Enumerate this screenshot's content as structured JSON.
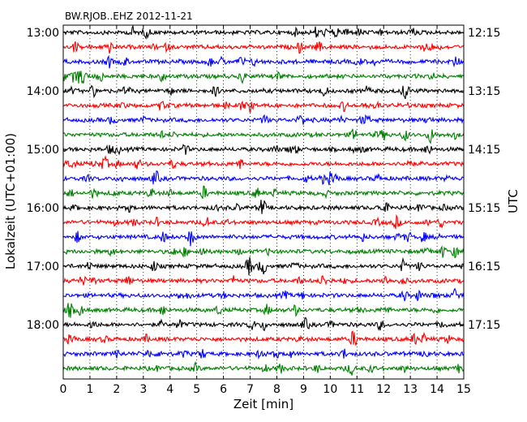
{
  "chart_data": {
    "type": "line",
    "title": "BW.RJOB..EHZ 2012-11-21",
    "xlabel": "Zeit  [min]",
    "ylabel_left": "Lokalzeit (UTC+01:00)",
    "ylabel_right": "UTC",
    "xlim": [
      0,
      15
    ],
    "x_ticks": [
      "0",
      "1",
      "2",
      "3",
      "4",
      "5",
      "6",
      "7",
      "8",
      "9",
      "10",
      "11",
      "12",
      "13",
      "14",
      "15"
    ],
    "grid": "vertical dotted at each minute",
    "left_tick_labels": [
      "13:00",
      "14:00",
      "15:00",
      "16:00",
      "17:00",
      "18:00"
    ],
    "right_tick_labels": [
      "12:15",
      "13:15",
      "14:15",
      "15:15",
      "16:15",
      "17:15"
    ],
    "trace_count": 24,
    "trace_interval_min": 15,
    "trace_colors": [
      "#000000",
      "#ff0000",
      "#0000ff",
      "#008000"
    ]
  }
}
